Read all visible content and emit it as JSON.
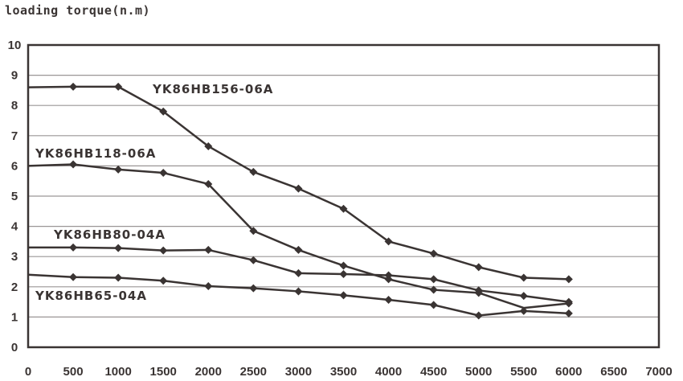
{
  "chart_data": {
    "type": "line",
    "title": "loading torque(n.m)",
    "xlabel": "",
    "ylabel": "",
    "xlim": [
      0,
      7000
    ],
    "ylim": [
      0,
      10
    ],
    "grid": true,
    "x_ticks": [
      "0",
      "500",
      "1000",
      "1500",
      "2000",
      "2500",
      "3000",
      "3500",
      "4000",
      "4500",
      "5000",
      "5500",
      "6000",
      "6500",
      "7000"
    ],
    "y_ticks": [
      "0",
      "1",
      "2",
      "3",
      "4",
      "5",
      "6",
      "7",
      "8",
      "9",
      "10"
    ],
    "x": [
      0,
      500,
      1000,
      1500,
      2000,
      2500,
      3000,
      3500,
      4000,
      4500,
      5000,
      5500,
      6000
    ],
    "line_color": "#3a3433",
    "series": [
      {
        "name": "YK86HB156-06A",
        "values": [
          8.6,
          8.62,
          8.62,
          7.8,
          6.65,
          5.8,
          5.25,
          4.58,
          3.5,
          3.1,
          2.65,
          2.3,
          2.25
        ]
      },
      {
        "name": "YK86HB118-06A",
        "values": [
          6.0,
          6.05,
          5.88,
          5.77,
          5.4,
          3.85,
          3.22,
          2.7,
          2.25,
          1.9,
          1.8,
          1.3,
          1.45
        ]
      },
      {
        "name": "YK86HB80-04A",
        "values": [
          3.3,
          3.3,
          3.28,
          3.2,
          3.22,
          2.88,
          2.45,
          2.42,
          2.38,
          2.25,
          1.88,
          1.7,
          1.5
        ]
      },
      {
        "name": "YK86HB65-04A",
        "values": [
          2.4,
          2.32,
          2.3,
          2.2,
          2.02,
          1.95,
          1.85,
          1.72,
          1.57,
          1.4,
          1.05,
          1.2,
          1.12
        ]
      }
    ]
  }
}
